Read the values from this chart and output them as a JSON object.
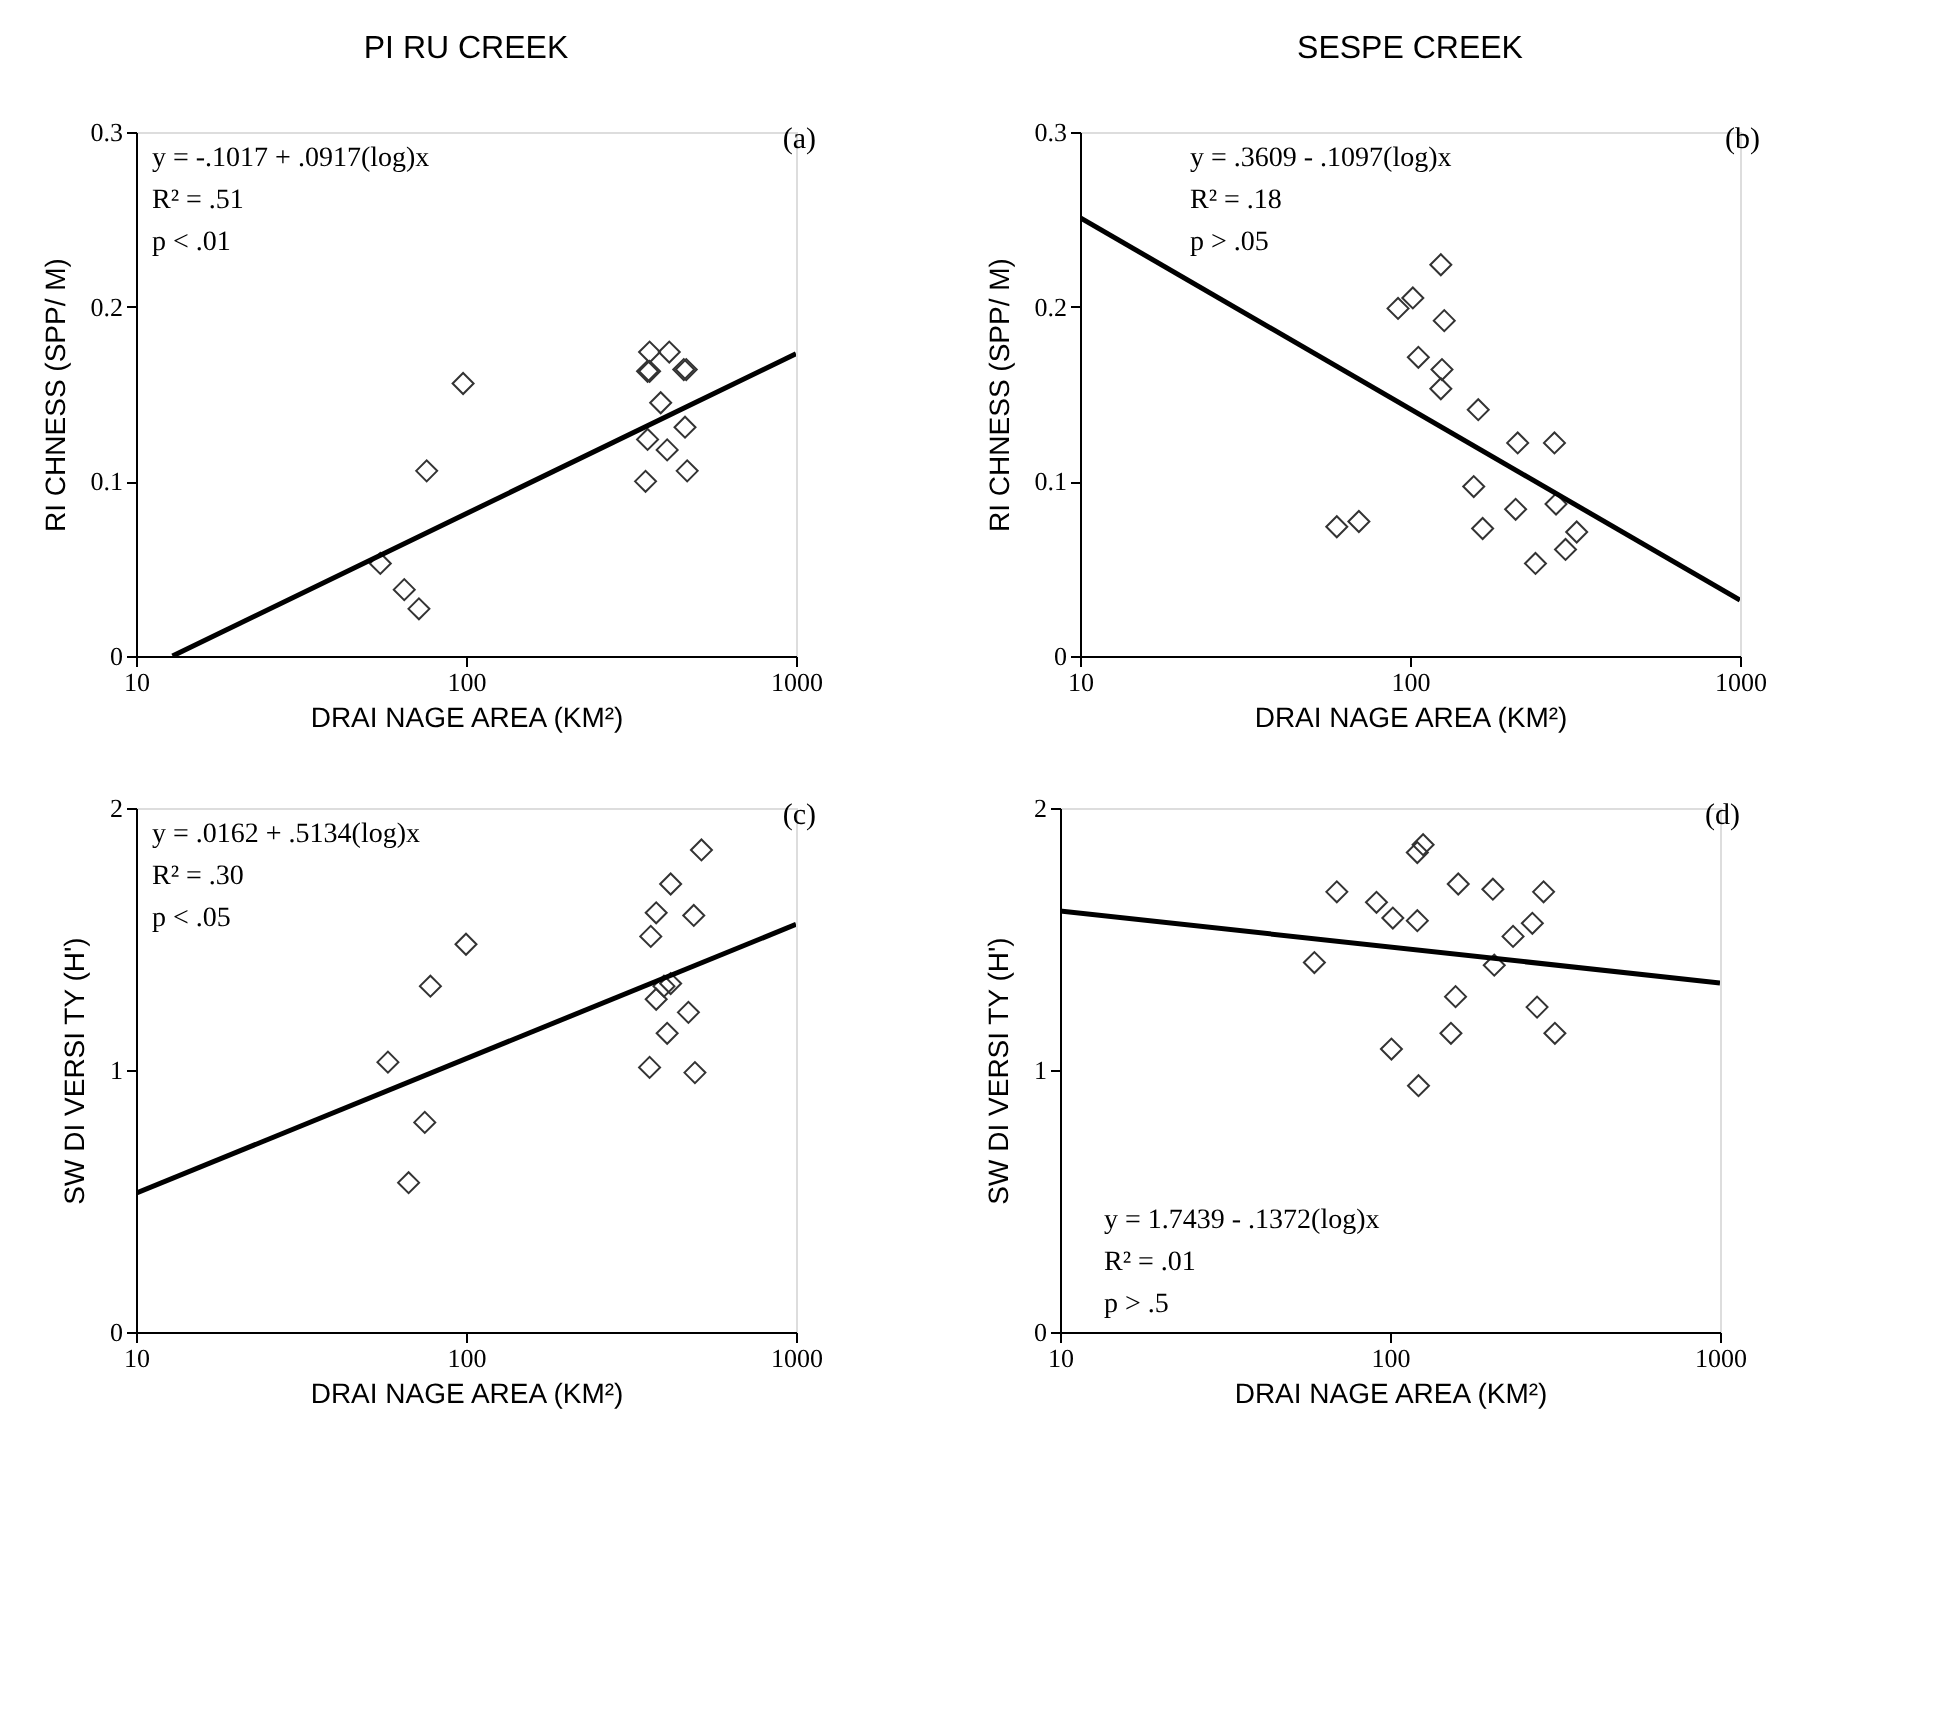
{
  "chart_data": [
    {
      "type": "scatter",
      "title": "PI RU CREEK",
      "xlabel": "DRAI NAGE AREA (KM²)",
      "ylabel": "RI CHNESS (SPP/ M)",
      "log": "x",
      "xlim": [
        10,
        1000
      ],
      "xticks": [
        10,
        100,
        1000
      ],
      "ylim": [
        0,
        0.3
      ],
      "yticks": [
        0,
        0.1,
        0.2,
        0.3
      ],
      "marker": "diamond",
      "annotations": [
        "(a)",
        "y = -.1017 + .0917(log)x",
        "R² = .51",
        "p < .01"
      ],
      "series": [
        {
          "type": "scatter",
          "color": "#333333",
          "x": [
            55,
            65,
            72,
            76,
            98,
            350,
            355,
            355,
            360,
            360,
            413,
            389,
            407,
            457,
            465,
            461,
            468
          ],
          "values": [
            0.053,
            0.038,
            0.027,
            0.106,
            0.156,
            0.1,
            0.124,
            0.163,
            0.163,
            0.174,
            0.174,
            0.145,
            0.118,
            0.164,
            0.164,
            0.131,
            0.106
          ]
        },
        {
          "type": "line",
          "color": "#000000",
          "line_style": "solid",
          "marker": "none",
          "x": [
            12.9,
            1000
          ],
          "values": [
            0,
            0.173
          ]
        }
      ]
    },
    {
      "type": "scatter",
      "title": "SESPE CREEK",
      "xlabel": "DRAI NAGE AREA (KM²)",
      "ylabel": "RI CHNESS (SPP/ M)",
      "log": "x",
      "xlim": [
        10,
        1000
      ],
      "xticks": [
        10,
        100,
        1000
      ],
      "ylim": [
        0,
        0.3
      ],
      "yticks": [
        0,
        0.1,
        0.2,
        0.3
      ],
      "marker": "diamond",
      "annotations": [
        "(b)",
        "y = .3609 - .1097(log)x",
        "R² = .18",
        "p > .05"
      ],
      "series": [
        {
          "type": "scatter",
          "color": "#333333",
          "x": [
            60,
            70,
            92,
            102,
            106,
            124,
            127,
            125,
            124,
            161,
            156,
            166,
            212,
            209,
            240,
            274,
            277,
            296,
            320
          ],
          "values": [
            0.074,
            0.077,
            0.199,
            0.205,
            0.171,
            0.224,
            0.192,
            0.164,
            0.153,
            0.141,
            0.097,
            0.073,
            0.122,
            0.084,
            0.053,
            0.122,
            0.087,
            0.061,
            0.071
          ]
        },
        {
          "type": "line",
          "color": "#000000",
          "line_style": "solid",
          "marker": "none",
          "x": [
            10,
            1000
          ],
          "values": [
            0.251,
            0.032
          ]
        }
      ]
    },
    {
      "type": "scatter",
      "xlabel": "DRAI NAGE AREA (KM²)",
      "ylabel": "SW DI VERSI TY (H')",
      "log": "x",
      "xlim": [
        10,
        1000
      ],
      "xticks": [
        10,
        100,
        1000
      ],
      "ylim": [
        0,
        2
      ],
      "yticks": [
        0,
        1,
        2
      ],
      "marker": "diamond",
      "annotations": [
        "(c)",
        "y = .0162 + .5134(log)x",
        "R² = .30",
        "p < .05"
      ],
      "series": [
        {
          "type": "scatter",
          "color": "#333333",
          "x": [
            58,
            67,
            75,
            78,
            100,
            360,
            363,
            377,
            377,
            407,
            417,
            417,
            398,
            472,
            490,
            494,
            517
          ],
          "values": [
            1.03,
            0.57,
            0.8,
            1.32,
            1.48,
            1.01,
            1.51,
            1.6,
            1.27,
            1.14,
            1.71,
            1.33,
            1.32,
            1.22,
            1.59,
            0.99,
            1.84
          ]
        },
        {
          "type": "line",
          "color": "#000000",
          "line_style": "solid",
          "marker": "none",
          "x": [
            10,
            1000
          ],
          "values": [
            0.53,
            1.556
          ]
        }
      ]
    },
    {
      "type": "scatter",
      "xlabel": "DRAI NAGE AREA (KM²)",
      "ylabel": "SW DI VERSI TY (H')",
      "log": "x",
      "xlim": [
        10,
        1000
      ],
      "xticks": [
        10,
        100,
        1000
      ],
      "ylim": [
        0,
        2
      ],
      "yticks": [
        0,
        1,
        2
      ],
      "marker": "diamond",
      "annotations": [
        "(d)",
        "y = 1.7439 - .1372(log)x",
        "R² = .01",
        "p > .5"
      ],
      "series": [
        {
          "type": "scatter",
          "color": "#333333",
          "x": [
            59,
            69,
            91,
            101,
            102,
            121,
            126,
            121,
            122,
            153,
            158,
            161,
            205,
            207,
            236,
            270,
            279,
            292,
            316
          ],
          "values": [
            1.41,
            1.68,
            1.64,
            1.08,
            1.58,
            1.83,
            1.86,
            1.57,
            0.94,
            1.14,
            1.28,
            1.71,
            1.69,
            1.4,
            1.51,
            1.56,
            1.24,
            1.68,
            1.14
          ]
        },
        {
          "type": "line",
          "color": "#000000",
          "line_style": "solid",
          "marker": "none",
          "x": [
            10,
            1000
          ],
          "values": [
            1.607,
            1.332
          ]
        }
      ]
    }
  ]
}
